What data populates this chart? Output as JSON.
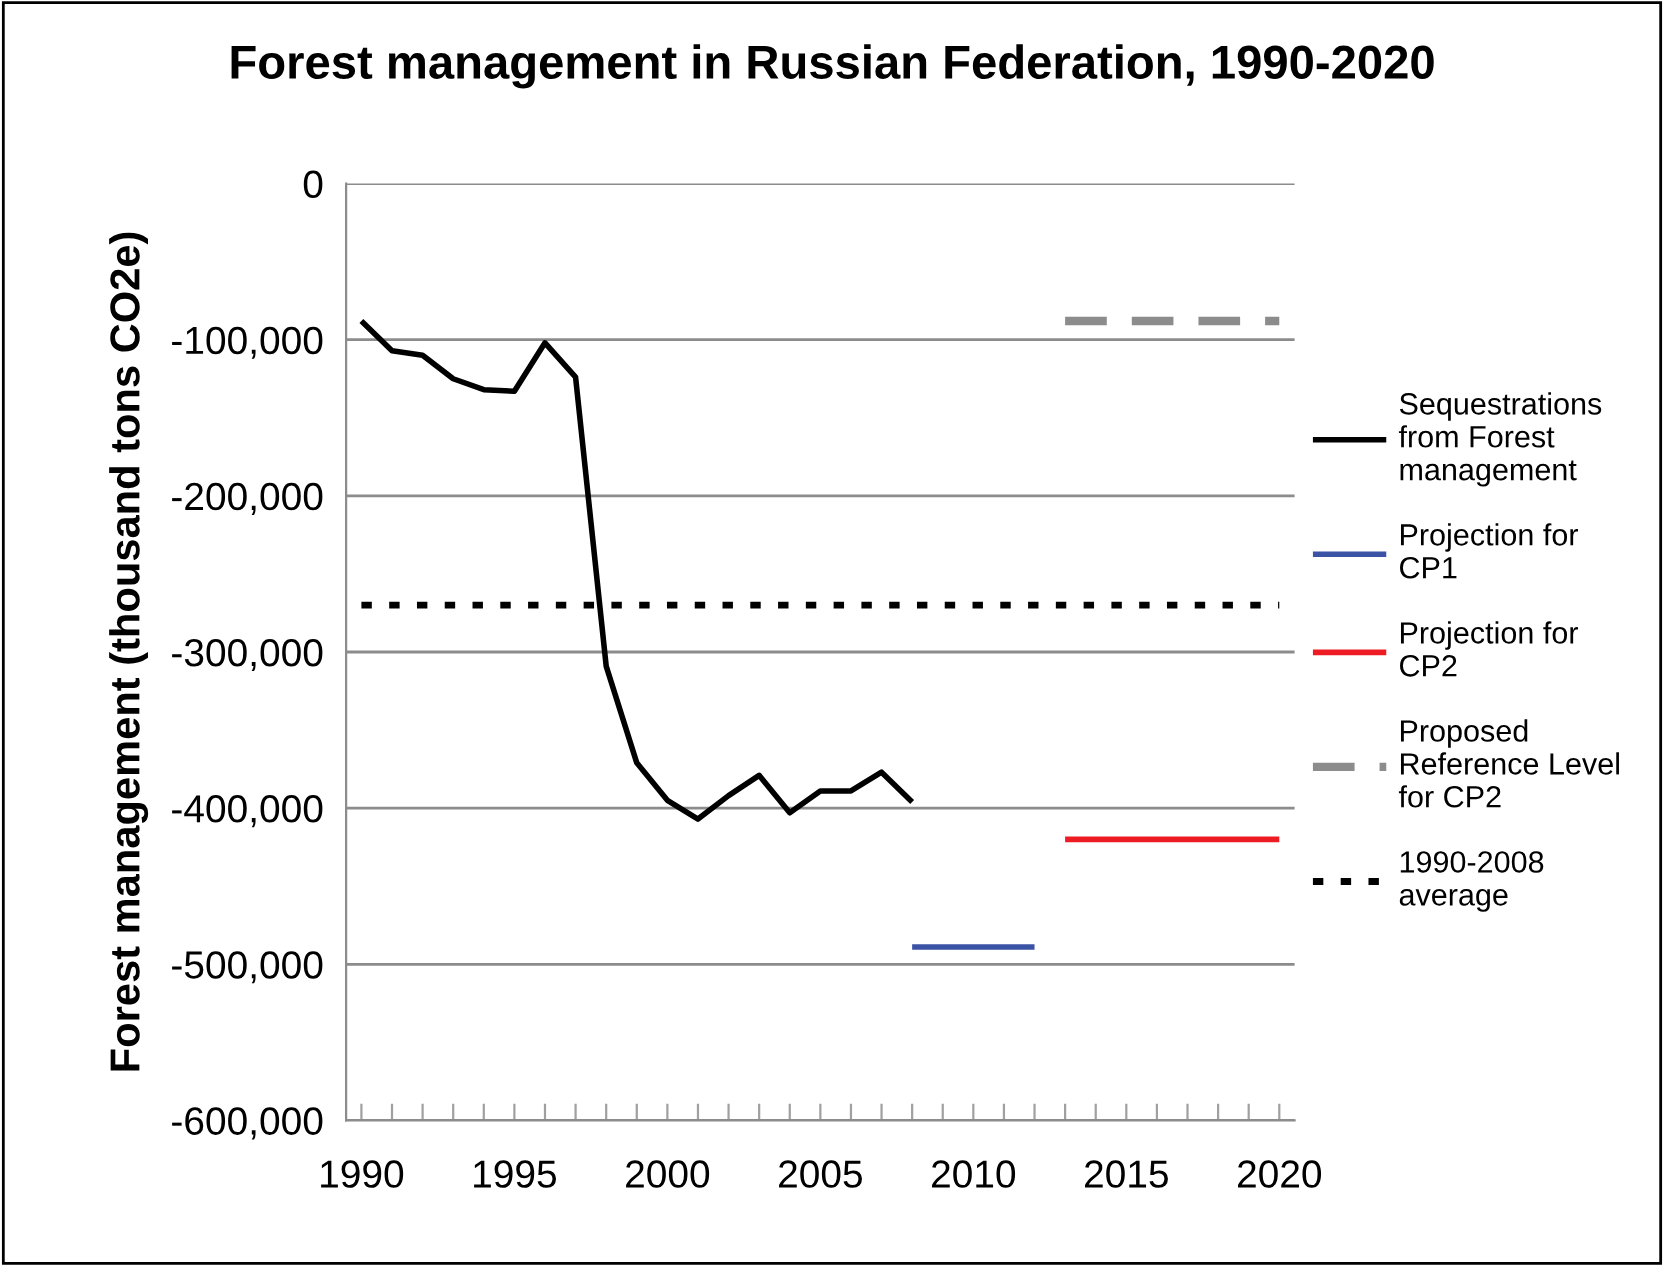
{
  "chart_data": {
    "type": "line",
    "title": "Forest management in Russian Federation, 1990-2020",
    "ylabel": "Forest management (thousand tons CO2e)",
    "xlim": [
      1989.5,
      2020.5
    ],
    "xticks": [
      1990,
      {
        "value": 1991,
        "label": null
      },
      {
        "value": 1992,
        "label": null
      },
      {
        "value": 1993,
        "label": null
      },
      {
        "value": 1994,
        "label": null
      },
      1995,
      {
        "value": 1996,
        "label": null
      },
      {
        "value": 1997,
        "label": null
      },
      {
        "value": 1998,
        "label": null
      },
      {
        "value": 1999,
        "label": null
      },
      2000,
      {
        "value": 2001,
        "label": null
      },
      {
        "value": 2002,
        "label": null
      },
      {
        "value": 2003,
        "label": null
      },
      {
        "value": 2004,
        "label": null
      },
      2005,
      {
        "value": 2006,
        "label": null
      },
      {
        "value": 2007,
        "label": null
      },
      {
        "value": 2008,
        "label": null
      },
      {
        "value": 2009,
        "label": null
      },
      2010,
      {
        "value": 2011,
        "label": null
      },
      {
        "value": 2012,
        "label": null
      },
      {
        "value": 2013,
        "label": null
      },
      {
        "value": 2014,
        "label": null
      },
      2015,
      {
        "value": 2016,
        "label": null
      },
      {
        "value": 2017,
        "label": null
      },
      {
        "value": 2018,
        "label": null
      },
      {
        "value": 2019,
        "label": null
      },
      2020
    ],
    "ylim": [
      -600000,
      0
    ],
    "yticks": [
      {
        "value": -600000,
        "label": "-600,000"
      },
      {
        "value": -500000,
        "label": "-500,000"
      },
      {
        "value": -400000,
        "label": "-400,000"
      },
      {
        "value": -300000,
        "label": "-300,000"
      },
      {
        "value": -200000,
        "label": "-200,000"
      },
      {
        "value": -100000,
        "label": "-100,000"
      },
      0
    ],
    "grid": "y",
    "legend": "right",
    "series": [
      {
        "name": "Sequestrations from Forest management",
        "color": "#000000",
        "line_style": "solid",
        "x": [
          1990,
          1991,
          1992,
          1993,
          1994,
          1995,
          1996,
          1997,
          1998,
          1999,
          2000,
          2001,
          2002,
          2003,
          2004,
          2005,
          2006,
          2007,
          2008
        ],
        "values": [
          -88000,
          -107000,
          -110000,
          -125000,
          -132000,
          -133000,
          -102000,
          -124000,
          -309000,
          -371000,
          -395000,
          -407000,
          -392000,
          -379000,
          -403000,
          -389000,
          -389000,
          -377000,
          -396000
        ]
      },
      {
        "name": "Projection for CP1",
        "color": "#3a53a4",
        "line_style": "solid",
        "x": [
          2008,
          2012
        ],
        "values": [
          -489000,
          -489000
        ]
      },
      {
        "name": "Projection for CP2",
        "color": "#ed1c24",
        "line_style": "solid",
        "x": [
          2013,
          2020
        ],
        "values": [
          -420000,
          -420000
        ]
      },
      {
        "name": "Proposed Reference Level for CP2",
        "color": "#8c8c8c",
        "line_style": "dashed",
        "x": [
          2013,
          2020
        ],
        "values": [
          -88000,
          -88000
        ]
      },
      {
        "name": "1990-2008 average",
        "color": "#000000",
        "line_style": "dotted",
        "x": [
          1990,
          2020
        ],
        "values": [
          -270000,
          -270000
        ]
      }
    ]
  }
}
